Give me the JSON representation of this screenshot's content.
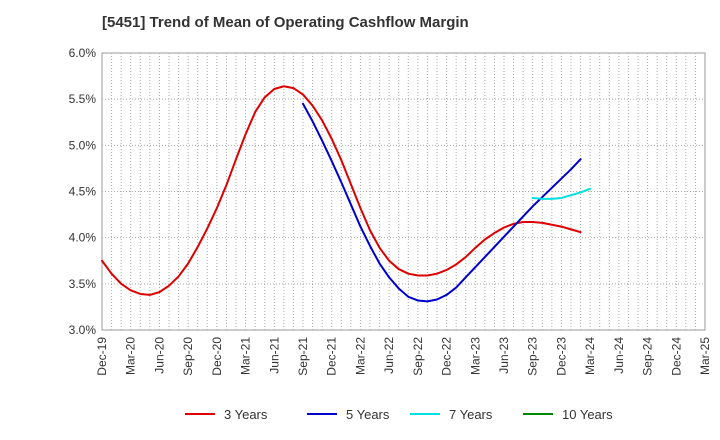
{
  "chart_data": {
    "type": "line",
    "title": "[5451]  Trend of Mean of Operating Cashflow Margin",
    "xlabel": "",
    "ylabel": "",
    "x_categories": [
      "Dec-19",
      "Mar-20",
      "Jun-20",
      "Sep-20",
      "Dec-20",
      "Mar-21",
      "Jun-21",
      "Sep-21",
      "Dec-21",
      "Mar-22",
      "Jun-22",
      "Sep-22",
      "Dec-22",
      "Mar-23",
      "Jun-23",
      "Sep-23",
      "Dec-23",
      "Mar-24",
      "Jun-24",
      "Sep-24",
      "Dec-24",
      "Mar-25"
    ],
    "y_ticks": [
      "3.0%",
      "3.5%",
      "4.0%",
      "4.5%",
      "5.0%",
      "5.5%",
      "6.0%"
    ],
    "ylim": [
      3.0,
      6.0
    ],
    "grid": true,
    "legend_position": "bottom",
    "series": [
      {
        "name": "3 Years",
        "color": "#dd0000",
        "points": [
          [
            0,
            3.75
          ],
          [
            1,
            3.61
          ],
          [
            2,
            3.5
          ],
          [
            3,
            3.43
          ],
          [
            4,
            3.39
          ],
          [
            5,
            3.38
          ],
          [
            6,
            3.41
          ],
          [
            7,
            3.48
          ],
          [
            8,
            3.58
          ],
          [
            9,
            3.72
          ],
          [
            10,
            3.9
          ],
          [
            11,
            4.1
          ],
          [
            12,
            4.32
          ],
          [
            13,
            4.57
          ],
          [
            14,
            4.85
          ],
          [
            15,
            5.12
          ],
          [
            16,
            5.36
          ],
          [
            17,
            5.52
          ],
          [
            18,
            5.61
          ],
          [
            19,
            5.64
          ],
          [
            20,
            5.62
          ],
          [
            21,
            5.55
          ],
          [
            22,
            5.43
          ],
          [
            23,
            5.27
          ],
          [
            24,
            5.07
          ],
          [
            25,
            4.84
          ],
          [
            26,
            4.58
          ],
          [
            27,
            4.32
          ],
          [
            28,
            4.08
          ],
          [
            29,
            3.89
          ],
          [
            30,
            3.75
          ],
          [
            31,
            3.66
          ],
          [
            32,
            3.61
          ],
          [
            33,
            3.59
          ],
          [
            34,
            3.59
          ],
          [
            35,
            3.61
          ],
          [
            36,
            3.65
          ],
          [
            37,
            3.71
          ],
          [
            38,
            3.79
          ],
          [
            39,
            3.89
          ],
          [
            40,
            3.98
          ],
          [
            41,
            4.05
          ],
          [
            42,
            4.11
          ],
          [
            43,
            4.15
          ],
          [
            44,
            4.17
          ],
          [
            45,
            4.17
          ],
          [
            46,
            4.16
          ],
          [
            47,
            4.14
          ],
          [
            48,
            4.12
          ],
          [
            49,
            4.09
          ],
          [
            50,
            4.06
          ]
        ]
      },
      {
        "name": "5 Years",
        "color": "#0000cc",
        "points": [
          [
            21,
            5.45
          ],
          [
            22,
            5.26
          ],
          [
            23,
            5.05
          ],
          [
            24,
            4.83
          ],
          [
            25,
            4.6
          ],
          [
            26,
            4.36
          ],
          [
            27,
            4.12
          ],
          [
            28,
            3.91
          ],
          [
            29,
            3.72
          ],
          [
            30,
            3.57
          ],
          [
            31,
            3.45
          ],
          [
            32,
            3.36
          ],
          [
            33,
            3.32
          ],
          [
            34,
            3.31
          ],
          [
            35,
            3.33
          ],
          [
            36,
            3.38
          ],
          [
            37,
            3.46
          ],
          [
            38,
            3.57
          ],
          [
            39,
            3.68
          ],
          [
            40,
            3.79
          ],
          [
            41,
            3.9
          ],
          [
            42,
            4.01
          ],
          [
            43,
            4.12
          ],
          [
            44,
            4.23
          ],
          [
            45,
            4.34
          ],
          [
            46,
            4.44
          ],
          [
            47,
            4.54
          ],
          [
            48,
            4.64
          ],
          [
            49,
            4.74
          ],
          [
            50,
            4.85
          ]
        ]
      },
      {
        "name": "7 Years",
        "color": "#00e0e0",
        "points": [
          [
            45,
            4.43
          ],
          [
            46,
            4.42
          ],
          [
            47,
            4.42
          ],
          [
            48,
            4.43
          ],
          [
            49,
            4.46
          ],
          [
            50,
            4.49
          ],
          [
            51,
            4.53
          ]
        ]
      },
      {
        "name": "10 Years",
        "color": "#008800",
        "points": []
      }
    ]
  }
}
